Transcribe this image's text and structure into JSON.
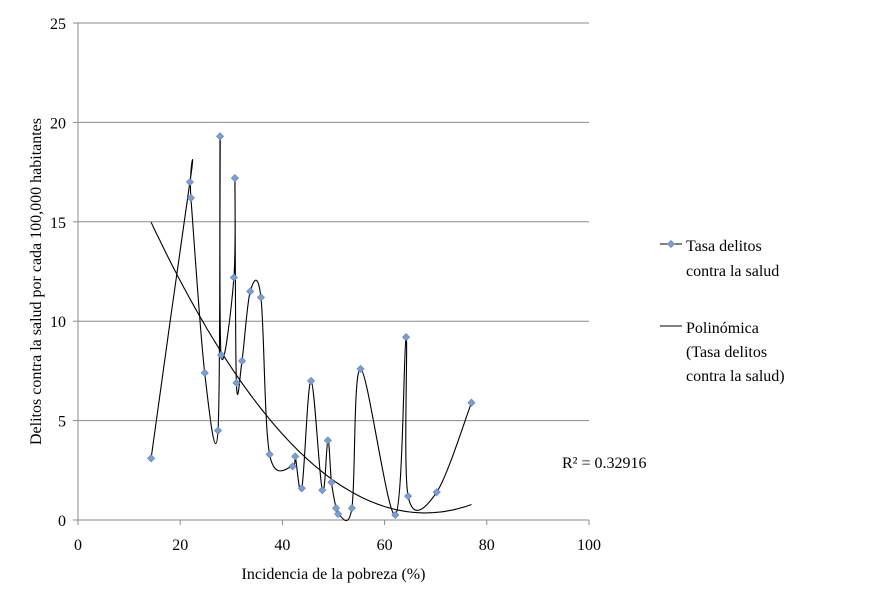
{
  "chart_data": {
    "type": "scatter",
    "title": "",
    "xlabel": "Incidencia de la pobreza (%)",
    "ylabel": "Delitos contra  la salud por cada 100,000 habitantes",
    "xlim": [
      0,
      100
    ],
    "ylim": [
      0,
      25
    ],
    "x_ticks": [
      "0",
      "20",
      "40",
      "60",
      "80",
      "100"
    ],
    "y_ticks": [
      "0",
      "5",
      "10",
      "15",
      "20",
      "25"
    ],
    "grid": "horizontal",
    "legend_position": "right",
    "series": [
      {
        "name": "Tasa delitos contra la salud",
        "legend_lines": [
          "Tasa delitos",
          "contra la salud"
        ],
        "marker": "diamond",
        "smoothed_line": true,
        "color": "#7b9fd4",
        "line_color": "#000000",
        "points": [
          [
            14.3,
            3.1
          ],
          [
            21.9,
            17.0
          ],
          [
            22.1,
            16.2
          ],
          [
            24.8,
            7.4
          ],
          [
            27.4,
            4.5
          ],
          [
            27.8,
            19.3
          ],
          [
            28.0,
            8.3
          ],
          [
            30.5,
            12.2
          ],
          [
            30.7,
            17.2
          ],
          [
            31.0,
            6.9
          ],
          [
            32.1,
            8.0
          ],
          [
            33.7,
            11.5
          ],
          [
            35.8,
            11.2
          ],
          [
            37.5,
            3.3
          ],
          [
            42.0,
            2.7
          ],
          [
            42.5,
            3.2
          ],
          [
            43.8,
            1.6
          ],
          [
            45.6,
            7.0
          ],
          [
            47.8,
            1.5
          ],
          [
            48.9,
            4.0
          ],
          [
            49.6,
            1.9
          ],
          [
            50.5,
            0.6
          ],
          [
            50.9,
            0.3
          ],
          [
            53.6,
            0.6
          ],
          [
            55.3,
            7.6
          ],
          [
            62.1,
            0.25
          ],
          [
            64.2,
            9.2
          ],
          [
            64.6,
            1.2
          ],
          [
            70.2,
            1.4
          ],
          [
            77.0,
            5.9
          ]
        ]
      },
      {
        "name": "Polinómica (Tasa delitos contra la salud)",
        "legend_lines": [
          "Polinómica",
          "(Tasa delitos",
          "contra la salud)"
        ],
        "type": "polynomial_trendline",
        "color": "#000000",
        "coefficients": [
          23.82,
          -0.6908,
          0.005085
        ]
      }
    ],
    "annotations": [
      {
        "text": "R² = 0.32916"
      }
    ]
  }
}
